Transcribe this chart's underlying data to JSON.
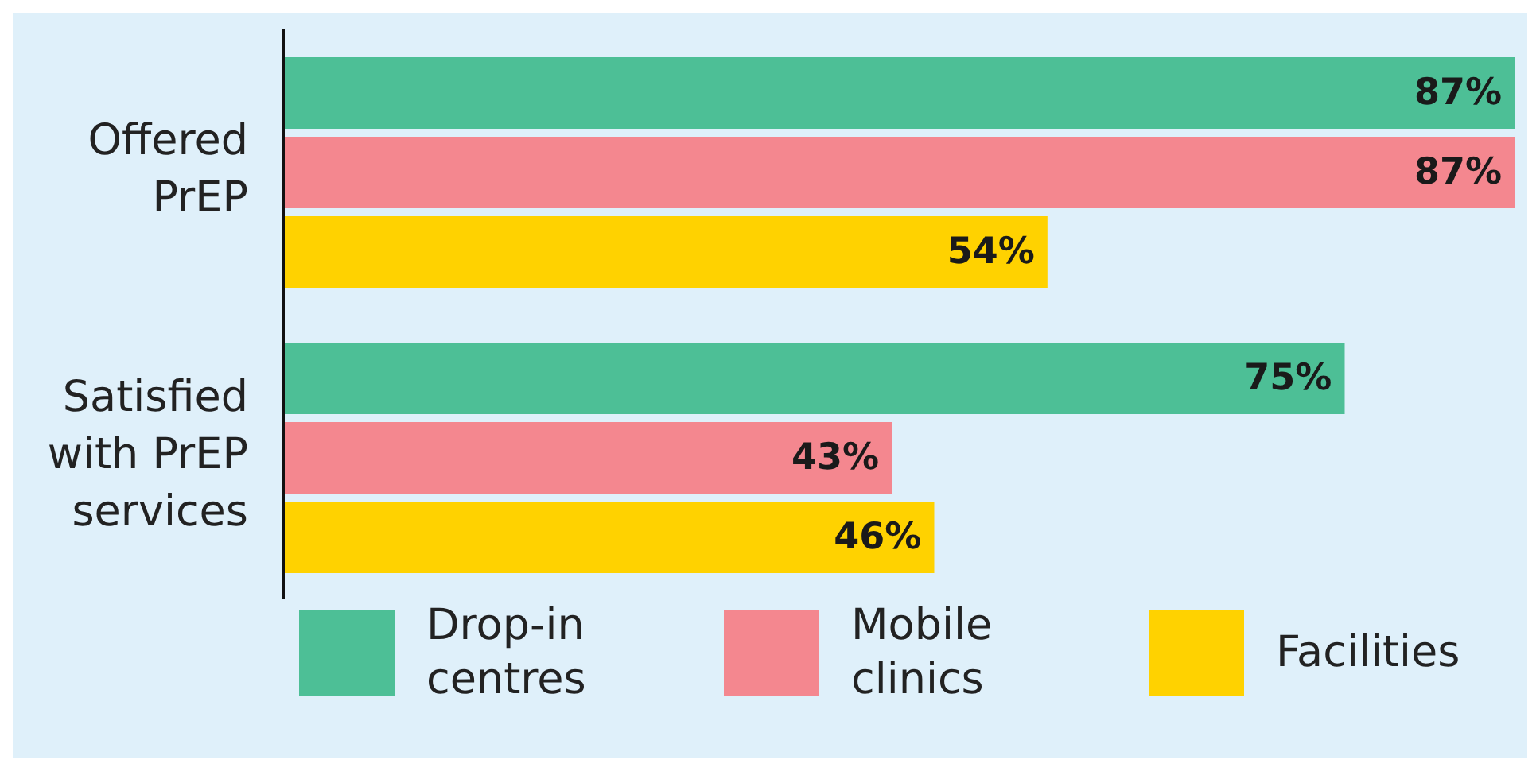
{
  "chart_data": {
    "type": "bar",
    "orientation": "horizontal",
    "categories": [
      "Offered PrEP",
      "Satisfied with PrEP services"
    ],
    "series": [
      {
        "name": "Drop-in centres",
        "color": "#4dbf96",
        "values": [
          87,
          75
        ],
        "value_labels": [
          "87%",
          "75%"
        ]
      },
      {
        "name": "Mobile clinics",
        "color": "#f4878f",
        "values": [
          87,
          43
        ],
        "value_labels": [
          "87%",
          "43%"
        ]
      },
      {
        "name": "Facilities",
        "color": "#ffd200",
        "values": [
          54,
          46
        ],
        "value_labels": [
          "54%",
          "46%"
        ]
      }
    ],
    "legend": "bottom",
    "grid": false
  }
}
